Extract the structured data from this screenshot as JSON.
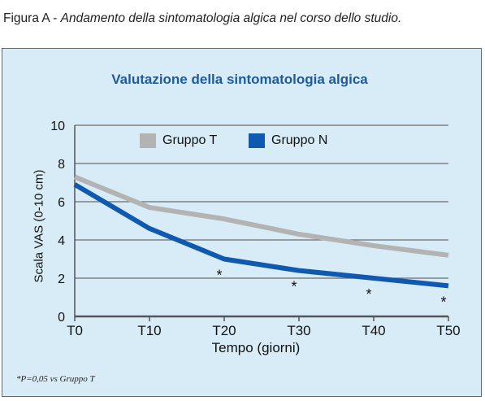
{
  "caption": {
    "label": "Figura A",
    "separator": " - ",
    "text": "Andamento della sintomatologia algica nel corso dello studio."
  },
  "chart_data": {
    "type": "line",
    "title": "Valutazione della sintomatologia algica",
    "xlabel": "Tempo (giorni)",
    "ylabel": "Scala VAS (0-10 cm)",
    "categories": [
      "T0",
      "T10",
      "T20",
      "T30",
      "T40",
      "T50"
    ],
    "yticks": [
      "0",
      "2",
      "4",
      "6",
      "8",
      "10"
    ],
    "ylim": [
      0,
      10
    ],
    "grid": true,
    "legend_position": "top",
    "series": [
      {
        "name": "Gruppo T",
        "color": "#b3b3b3",
        "values": [
          7.3,
          5.7,
          5.1,
          4.3,
          3.7,
          3.2
        ]
      },
      {
        "name": "Gruppo N",
        "color": "#1059b0",
        "values": [
          6.9,
          4.6,
          3.0,
          2.4,
          2.0,
          1.6
        ]
      }
    ],
    "significance_marker": "*",
    "significance_at": [
      "T20",
      "T30",
      "T40",
      "T50"
    ],
    "footnote": "*P=0,05 vs Gruppo T"
  },
  "colors": {
    "panel_background": "#d8ecf8",
    "title": "#1f5a9c",
    "grid": "#6b6b6b"
  }
}
